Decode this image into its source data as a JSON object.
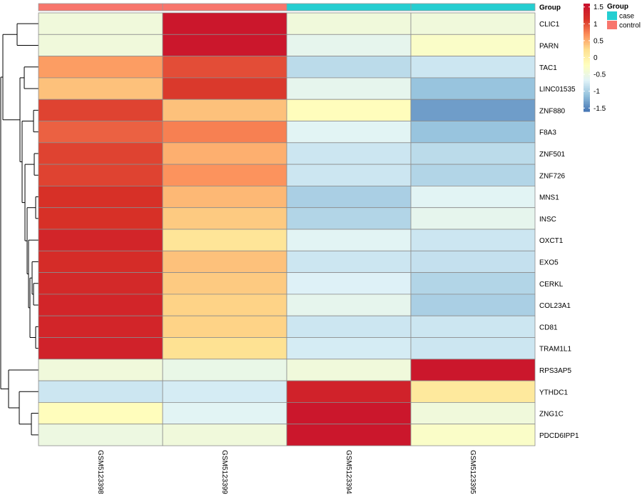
{
  "chart_data": {
    "type": "heatmap",
    "title": "",
    "xlabel": "",
    "ylabel": "",
    "columns": [
      "GSM5123398",
      "GSM5123399",
      "GSM5123394",
      "GSM5123395"
    ],
    "rows": [
      "CLIC1",
      "PARN",
      "TAC1",
      "LINC01535",
      "ZNF880",
      "F8A3",
      "ZNF501",
      "ZNF726",
      "MNS1",
      "INSC",
      "OXCT1",
      "EXO5",
      "CERKL",
      "COL23A1",
      "CD81",
      "TRAM1L1",
      "RPS3AP5",
      "YTHDC1",
      "ZNG1C",
      "PDCD6IPP1"
    ],
    "values": [
      [
        -0.45,
        1.5,
        -0.45,
        -0.45
      ],
      [
        -0.45,
        1.5,
        -0.6,
        -0.3
      ],
      [
        0.6,
        1.0,
        -0.9,
        -0.8
      ],
      [
        0.4,
        1.1,
        -0.6,
        -1.1
      ],
      [
        1.05,
        0.4,
        -0.2,
        -1.35
      ],
      [
        0.9,
        0.75,
        -0.65,
        -1.1
      ],
      [
        1.05,
        0.5,
        -0.8,
        -0.9
      ],
      [
        1.05,
        0.65,
        -0.8,
        -0.95
      ],
      [
        1.15,
        0.45,
        -1.0,
        -0.65
      ],
      [
        1.15,
        0.35,
        -0.95,
        -0.6
      ],
      [
        1.3,
        0.15,
        -0.65,
        -0.8
      ],
      [
        1.2,
        0.4,
        -0.8,
        -0.85
      ],
      [
        1.25,
        0.35,
        -0.7,
        -0.95
      ],
      [
        1.3,
        0.3,
        -0.6,
        -1.0
      ],
      [
        1.3,
        0.3,
        -0.8,
        -0.8
      ],
      [
        1.35,
        0.2,
        -0.75,
        -0.8
      ],
      [
        -0.45,
        -0.55,
        -0.45,
        1.5
      ],
      [
        -0.8,
        -0.75,
        1.35,
        0.1
      ],
      [
        -0.2,
        -0.65,
        1.5,
        -0.45
      ],
      [
        -0.5,
        -0.45,
        1.5,
        -0.3
      ]
    ],
    "column_annotation": {
      "title": "Group",
      "values": [
        "control",
        "control",
        "case",
        "case"
      ],
      "colors": {
        "case": "#25CED1",
        "control": "#F8766D"
      }
    },
    "legend": {
      "title": "Group",
      "entries": [
        {
          "label": "case",
          "color": "#25CED1"
        },
        {
          "label": "control",
          "color": "#F8766D"
        }
      ]
    },
    "colorbar": {
      "range": [
        -1.6,
        1.6
      ],
      "ticks": [
        "1.5",
        "1",
        "0.5",
        "0",
        "-0.5",
        "-1",
        "-1.5"
      ],
      "tick_values": [
        1.5,
        1,
        0.5,
        0,
        -0.5,
        -1,
        -1.5
      ],
      "palette": [
        "#4575B4",
        "#91BFDB",
        "#E0F3F8",
        "#FFFFBF",
        "#FEE090",
        "#FC8D59",
        "#D73027",
        "#C8102E"
      ]
    },
    "dendrogram": "rows",
    "legend_position": "right"
  }
}
